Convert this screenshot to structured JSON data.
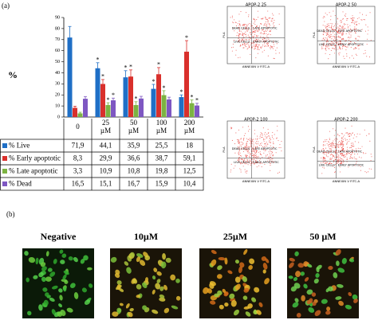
{
  "panel_a_label": "(a)",
  "chart_data": {
    "type": "bar",
    "y_label": "%",
    "categories": [
      "0",
      "25 µM",
      "50 µM",
      "100 µM",
      "200 µM"
    ],
    "ylim": [
      0,
      90
    ],
    "yticks": [
      0,
      10,
      20,
      30,
      40,
      50,
      60,
      70,
      80,
      90
    ],
    "series": [
      {
        "name": "% Live",
        "color": "#1f6fc6",
        "values": [
          71.9,
          44.1,
          35.9,
          25.5,
          18
        ],
        "value_labels": [
          "71,9",
          "44,1",
          "35,9",
          "25,5",
          "18"
        ],
        "errors": [
          10,
          5,
          6,
          4,
          2
        ],
        "significance": [
          null,
          "*",
          "*",
          "*",
          "*"
        ]
      },
      {
        "name": "% Early apoptotic",
        "color": "#d9302c",
        "values": [
          8.3,
          29.9,
          36.6,
          38.7,
          59.1
        ],
        "value_labels": [
          "8,3",
          "29,9",
          "36,6",
          "38,7",
          "59,1"
        ],
        "errors": [
          1.5,
          4,
          6,
          6,
          10
        ],
        "significance": [
          null,
          "*",
          "*",
          "*",
          "*"
        ]
      },
      {
        "name": "% Late apoptotic",
        "color": "#7cb342",
        "values": [
          3.3,
          10.9,
          10.8,
          19.8,
          12.5
        ],
        "value_labels": [
          "3,3",
          "10,9",
          "10,8",
          "19,8",
          "12,5"
        ],
        "errors": [
          1,
          2,
          3,
          4,
          3
        ],
        "significance": [
          null,
          "*",
          "*",
          "*",
          "*"
        ]
      },
      {
        "name": "% Dead",
        "color": "#7e57c2",
        "values": [
          16.5,
          15.1,
          16.7,
          15.9,
          10.4
        ],
        "value_labels": [
          "16,5",
          "15,1",
          "16,7",
          "15,9",
          "10,4"
        ],
        "errors": [
          2,
          2,
          2,
          2,
          2
        ],
        "significance": [
          null,
          "*",
          null,
          null,
          "*"
        ]
      }
    ]
  },
  "flow_plots": [
    {
      "title": "APOP-2 25",
      "quadrants": [
        "DEAD CELLS",
        "LATE APOPTOTIC",
        "LIVE CELLS",
        "EARLY APOPTOTIC"
      ],
      "x_label": "ANNEXIN V FITC-A",
      "y_label": "PI-A"
    },
    {
      "title": "APOP-2 50",
      "quadrants": [
        "DEAD CELLS",
        "LATE APOPTOTIC",
        "LIVE CELLS",
        "EARLY APOPTOTIC"
      ],
      "x_label": "ANNEXIN V FITC-A",
      "y_label": "PI-A"
    },
    {
      "title": "APOP-2 100",
      "quadrants": [
        "DEAD CELLS",
        "LATE APOPTOTIC",
        "LIVE CELLS",
        "EARLY APOPTOTIC"
      ],
      "x_label": "ANNEXIN V FITC-A",
      "y_label": "PI-A"
    },
    {
      "title": "APOP-2 200",
      "quadrants": [
        "DEAD CELLS",
        "LATE APOPTOTIC",
        "LIVE CELLS",
        "EARLY APOPTOTIC"
      ],
      "x_label": "ANNEXIN V FITC-A",
      "y_label": "PI-A"
    }
  ],
  "panel_b_label": "(b)",
  "micrographs": [
    "Negative",
    "10µM",
    "25µM",
    "50 µM"
  ]
}
